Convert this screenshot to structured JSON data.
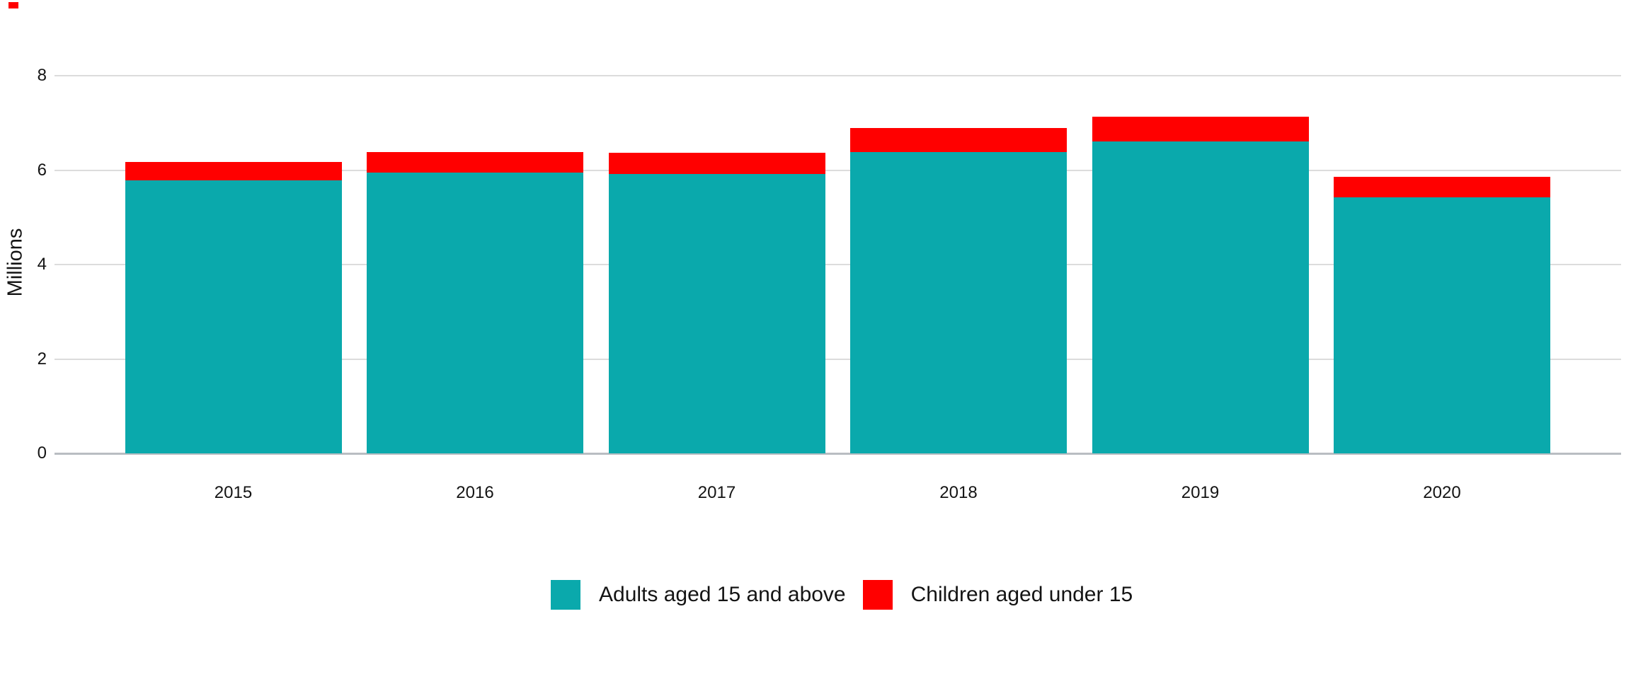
{
  "page": {
    "background": "#ffffff",
    "artifact_top_left_mark_color": "#ff0000"
  },
  "chart_data": {
    "type": "bar",
    "stacked": true,
    "title": "",
    "xlabel": "",
    "ylabel": "Millions",
    "categories": [
      "2015",
      "2016",
      "2017",
      "2018",
      "2019",
      "2020"
    ],
    "series": [
      {
        "name": "Adults aged 15 and above",
        "color": "#0AA9AC",
        "values": [
          5.78,
          5.95,
          5.92,
          6.39,
          6.61,
          5.43
        ]
      },
      {
        "name": "Children aged under 15",
        "color": "#FF0000",
        "values": [
          0.39,
          0.43,
          0.45,
          0.51,
          0.52,
          0.43
        ]
      }
    ],
    "totals": [
      6.17,
      6.38,
      6.37,
      6.9,
      7.13,
      5.86
    ],
    "yticks": [
      0,
      2,
      4,
      6,
      8
    ],
    "ytick_labels": [
      "0",
      "2",
      "4",
      "6",
      "8"
    ],
    "ylim": [
      0,
      8.7
    ],
    "grid": true,
    "gridline_color": "#dcdcdc",
    "axis_line_color": "#b9bdc2",
    "legend_position": "bottom"
  }
}
